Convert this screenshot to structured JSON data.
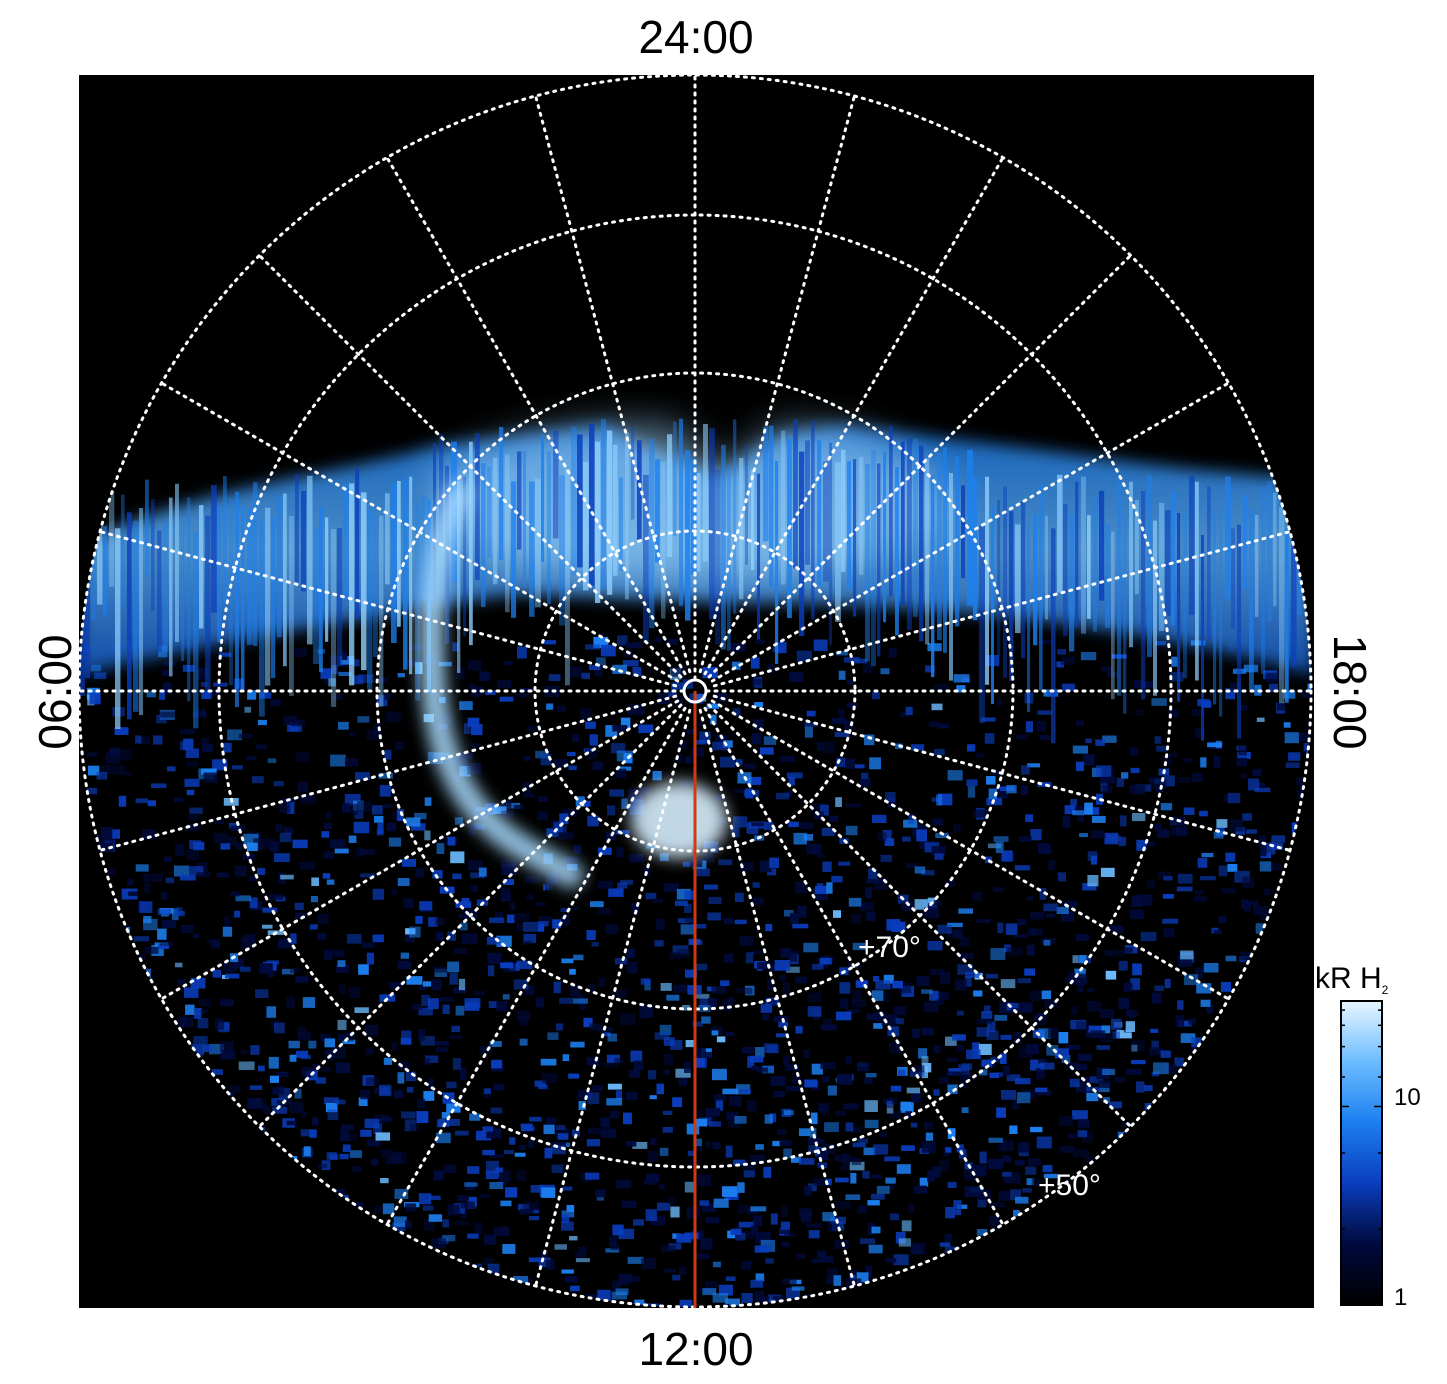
{
  "local_time_labels": {
    "top": "24:00",
    "bottom": "12:00",
    "left": "06:00",
    "right": "18:00"
  },
  "latitude_labels": [
    "+70°",
    "+50°"
  ],
  "colorbar": {
    "title": "kR H",
    "title_subscript": "2",
    "scale": "log",
    "ticks": [
      "10",
      "1"
    ],
    "colors": [
      "#000000",
      "#000a3c",
      "#0a3dbd",
      "#1c7ff0",
      "#6cbcff",
      "#e8f6ff"
    ]
  },
  "projection": "polar, view centered on pole",
  "grid_style": "dotted white",
  "marker_line_color": "#d03a10",
  "background_color": "#000000"
}
